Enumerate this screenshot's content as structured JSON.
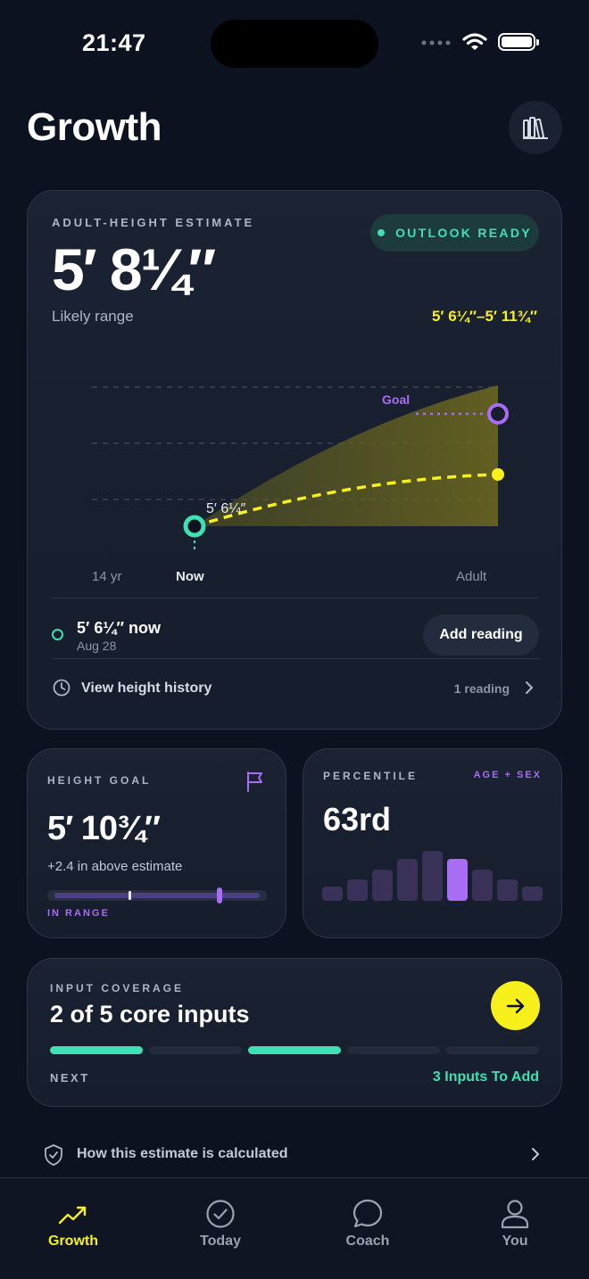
{
  "status_bar": {
    "time": "21:47"
  },
  "header": {
    "title": "Growth",
    "library_icon": "library-icon"
  },
  "estimate": {
    "eyebrow": "ADULT-HEIGHT ESTIMATE",
    "value": "5′ 8¼″",
    "status": "OUTLOOK READY",
    "likely_label": "Likely range",
    "likely_value": "5′ 6¼″–5′ 11¾″"
  },
  "chart_data": {
    "type": "line",
    "x_labels": [
      "14 yr",
      "Now",
      "Adult"
    ],
    "series": [
      {
        "x": [
          "Now",
          "Adult"
        ],
        "values": [
          "5′ 6¼″",
          "5′ 8¼″"
        ]
      }
    ],
    "point_labels": {
      "now": "5′ 6¼″",
      "goal": "Goal"
    },
    "band": [
      "5′ 6¼″",
      "5′ 11¾″"
    ],
    "colors": {
      "estimate": "#f7f01c",
      "goal": "#a86cf5",
      "now": "#3fe0b4"
    }
  },
  "reading": {
    "value": "5′ 6¼″ now",
    "date": "Aug 28",
    "add_button": "Add reading",
    "history_label": "View height history",
    "history_count": "1 reading"
  },
  "goal": {
    "eyebrow": "HEIGHT GOAL",
    "value": "5′ 10¾″",
    "delta": "+2.4 in above estimate",
    "status": "IN RANGE"
  },
  "percentile": {
    "eyebrow": "PERCENTILE",
    "tag": "AGE + SEX",
    "value": "63rd",
    "bars": [
      0.28,
      0.42,
      0.62,
      0.84,
      1.0,
      0.84,
      0.62,
      0.42,
      0.28
    ],
    "highlight_index": 5
  },
  "coverage": {
    "eyebrow": "INPUT COVERAGE",
    "title": "2 of 5 core inputs",
    "segments": [
      true,
      false,
      true,
      false,
      false
    ],
    "next_label": "NEXT",
    "next_value": "3 Inputs To Add"
  },
  "how_link": {
    "label": "How this estimate is calculated"
  },
  "tabs": [
    {
      "label": "Growth",
      "icon": "trend-up-icon",
      "active": true
    },
    {
      "label": "Today",
      "icon": "check-circle-icon",
      "active": false
    },
    {
      "label": "Coach",
      "icon": "chat-bubble-icon",
      "active": false
    },
    {
      "label": "You",
      "icon": "person-icon",
      "active": false
    }
  ]
}
